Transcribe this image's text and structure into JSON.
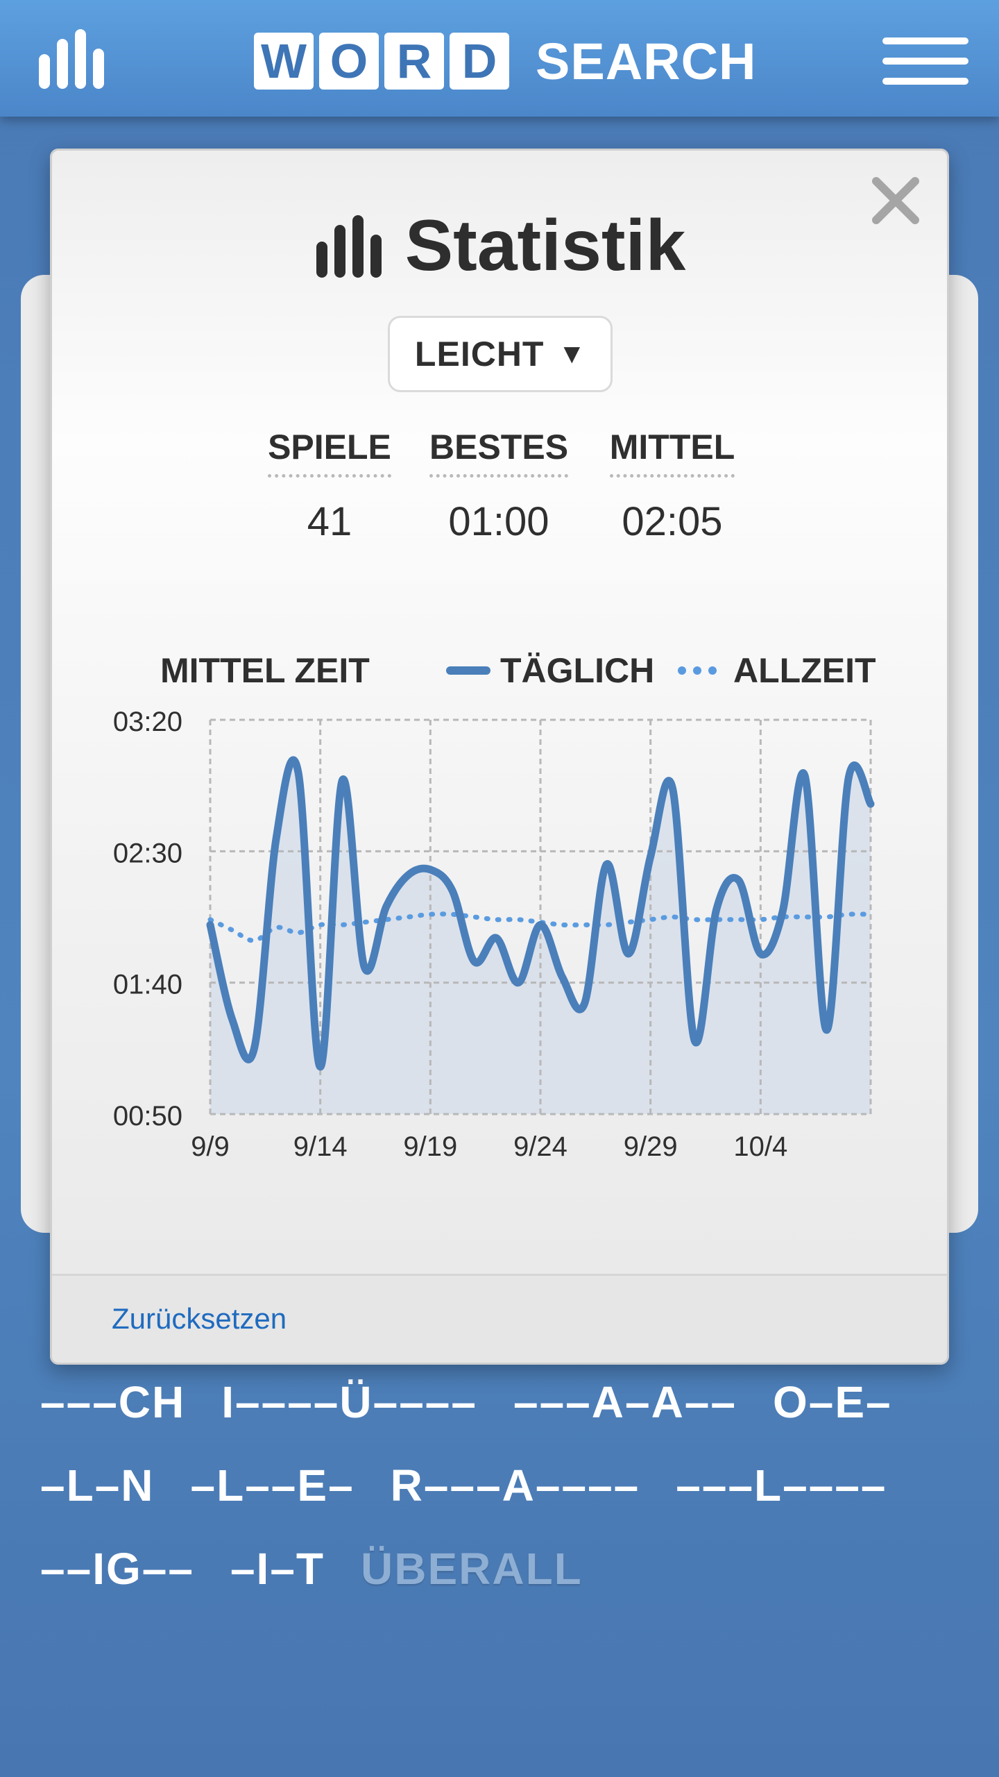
{
  "header": {
    "logo_tiles": [
      "W",
      "O",
      "R",
      "D"
    ],
    "logo_word": "SEARCH",
    "stats_icon": "bar-chart-icon",
    "menu_icon": "hamburger-menu-icon"
  },
  "modal": {
    "title": "Statistik",
    "title_icon": "bar-chart-icon",
    "close_icon": "close-icon",
    "difficulty": {
      "selected": "LEICHT",
      "caret": "▼"
    },
    "stats": [
      {
        "label": "SPIELE",
        "value": "41"
      },
      {
        "label": "BESTES",
        "value": "01:00"
      },
      {
        "label": "MITTEL",
        "value": "02:05"
      }
    ],
    "reset_label": "Zurücksetzen"
  },
  "chart_data": {
    "type": "line",
    "title": "MITTEL ZEIT",
    "y_tick_labels": [
      "03:20",
      "02:30",
      "01:40",
      "00:50"
    ],
    "y_ticks_seconds": [
      200,
      150,
      100,
      50
    ],
    "ylim_seconds": [
      50,
      200
    ],
    "x_tick_labels": [
      "9/9",
      "9/14",
      "9/19",
      "9/24",
      "9/29",
      "10/4"
    ],
    "x_days": [
      "9/9",
      "9/10",
      "9/11",
      "9/12",
      "9/13",
      "9/14",
      "9/15",
      "9/16",
      "9/17",
      "9/18",
      "9/19",
      "9/20",
      "9/21",
      "9/22",
      "9/23",
      "9/24",
      "9/25",
      "9/26",
      "9/27",
      "9/28",
      "9/29",
      "9/30",
      "10/1",
      "10/2",
      "10/3",
      "10/4",
      "10/5",
      "10/6",
      "10/7",
      "10/8",
      "10/9"
    ],
    "grid": true,
    "colors": {
      "daily": "#4a7fba",
      "alltime": "#5a9be0",
      "fill": "#d6deea"
    },
    "series": [
      {
        "name": "TÄGLICH",
        "style": "solid",
        "values": [
          122,
          86,
          75,
          155,
          180,
          68,
          177,
          106,
          129,
          141,
          143,
          135,
          108,
          117,
          100,
          122,
          102,
          92,
          145,
          111,
          148,
          174,
          78,
          128,
          139,
          111,
          127,
          179,
          82,
          178,
          168
        ]
      },
      {
        "name": "ALLZEIT",
        "style": "dotted",
        "values": [
          124,
          120,
          116,
          121,
          119,
          122,
          122,
          123,
          124,
          125,
          126,
          126,
          125,
          124,
          124,
          123,
          122,
          122,
          122,
          123,
          124,
          125,
          124,
          124,
          124,
          124,
          125,
          125,
          125,
          126,
          126
        ]
      }
    ]
  },
  "word_list": {
    "rows": [
      [
        {
          "text": "–––CH",
          "found": false
        },
        {
          "text": "I––––Ü––––",
          "found": false
        },
        {
          "text": "–––A–A––",
          "found": false
        },
        {
          "text": "O–E–",
          "found": false
        }
      ],
      [
        {
          "text": "–L–N",
          "found": false
        },
        {
          "text": "–L––E–",
          "found": false
        },
        {
          "text": "R–––A––––",
          "found": false
        },
        {
          "text": "–––L––––",
          "found": false
        }
      ],
      [
        {
          "text": "––IG––",
          "found": false
        },
        {
          "text": "–I–T",
          "found": false
        },
        {
          "text": "ÜBERALL",
          "found": true
        }
      ]
    ]
  }
}
